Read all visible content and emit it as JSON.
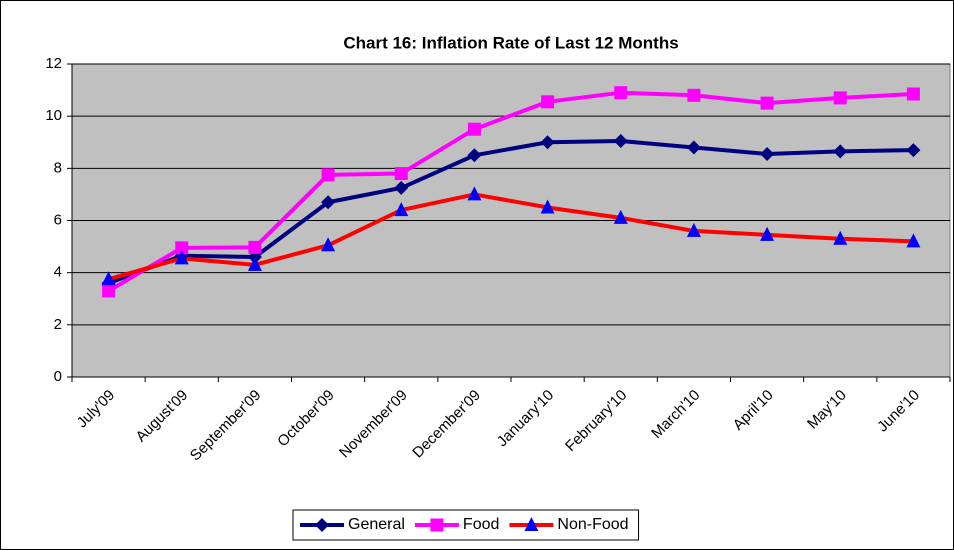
{
  "chart_data": {
    "type": "line",
    "title": "Chart 16: Inflation Rate of Last 12 Months",
    "categories": [
      "July'09",
      "August'09",
      "September'09",
      "October'09",
      "November'09",
      "December'09",
      "January'10",
      "February'10",
      "March'10",
      "April'10",
      "May'10",
      "June'10"
    ],
    "series": [
      {
        "name": "General",
        "color": "#000080",
        "marker": "diamond",
        "marker_color": "#000080",
        "values": [
          3.6,
          4.65,
          4.6,
          6.7,
          7.25,
          8.5,
          9.0,
          9.05,
          8.8,
          8.55,
          8.65,
          8.7
        ]
      },
      {
        "name": "Food",
        "color": "#ff00ff",
        "marker": "square",
        "marker_color": "#ff00ff",
        "values": [
          3.3,
          4.95,
          4.97,
          7.75,
          7.8,
          9.5,
          10.55,
          10.9,
          10.8,
          10.5,
          10.7,
          10.85
        ]
      },
      {
        "name": "Non-Food",
        "color": "#ff0000",
        "marker": "triangle",
        "marker_color": "#0000ff",
        "values": [
          3.75,
          4.55,
          4.3,
          5.05,
          6.4,
          7.0,
          6.5,
          6.1,
          5.6,
          5.45,
          5.3,
          5.2
        ]
      }
    ],
    "ylim": [
      0,
      12
    ],
    "yticks": [
      0,
      2,
      4,
      6,
      8,
      10,
      12
    ],
    "grid": true,
    "plot_background": "#c0c0c0",
    "legend": "bottom"
  }
}
